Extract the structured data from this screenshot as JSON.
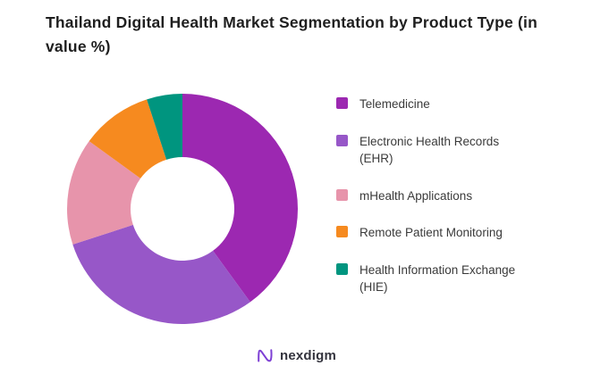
{
  "title": "Thailand Digital Health Market Segmentation by Product Type (in value %)",
  "chart_data": {
    "type": "pie",
    "subtype": "donut",
    "title": "Thailand Digital Health Market Segmentation by Product Type (in value %)",
    "unit": "value %",
    "categories": [
      "Telemedicine",
      "Electronic Health Records (EHR)",
      "mHealth Applications",
      "Remote Patient Monitoring",
      "Health Information Exchange (HIE)"
    ],
    "values": [
      40,
      30,
      15,
      10,
      5
    ],
    "colors": [
      "#9c28b1",
      "#9757c8",
      "#e794ab",
      "#f68a1f",
      "#00957f"
    ],
    "start_angle": "12-o-clock",
    "direction": "clockwise",
    "inner_radius_ratio": 0.45,
    "legend_position": "right",
    "data_labels": "none"
  },
  "legend": {
    "items": [
      {
        "label": "Telemedicine"
      },
      {
        "label": "Electronic Health Records (EHR)"
      },
      {
        "label": "mHealth Applications"
      },
      {
        "label": "Remote Patient Monitoring"
      },
      {
        "label": "Health Information Exchange (HIE)"
      }
    ]
  },
  "footer": {
    "brand": "nexdigm",
    "brand_color": "#7d3fd4"
  }
}
